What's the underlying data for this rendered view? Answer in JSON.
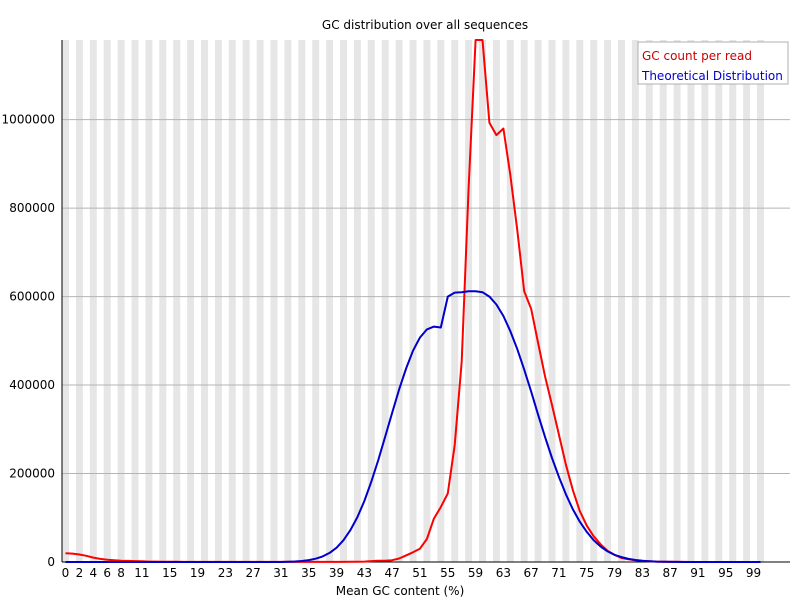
{
  "chart_data": {
    "type": "line",
    "title": "GC distribution over all sequences",
    "xlabel": "Mean GC content (%)",
    "ylabel": "",
    "xlim": [
      0,
      100
    ],
    "ylim": [
      0,
      1180000
    ],
    "x_ticks": [
      "0",
      "2",
      "4",
      "6",
      "8",
      "11",
      "15",
      "19",
      "23",
      "27",
      "31",
      "35",
      "39",
      "43",
      "47",
      "51",
      "55",
      "59",
      "63",
      "67",
      "71",
      "75",
      "79",
      "83",
      "87",
      "91",
      "95",
      "99"
    ],
    "y_ticks": [
      "0",
      "200000",
      "400000",
      "600000",
      "800000",
      "1000000"
    ],
    "grid": "horizontal lines with alternating vertical bands",
    "legend_position": "top-right",
    "x": [
      0,
      1,
      2,
      3,
      4,
      5,
      6,
      7,
      8,
      9,
      10,
      11,
      12,
      13,
      14,
      15,
      16,
      17,
      18,
      19,
      20,
      21,
      22,
      23,
      24,
      25,
      26,
      27,
      28,
      29,
      30,
      31,
      32,
      33,
      34,
      35,
      36,
      37,
      38,
      39,
      40,
      41,
      42,
      43,
      44,
      45,
      46,
      47,
      48,
      49,
      50,
      51,
      52,
      53,
      54,
      55,
      56,
      57,
      58,
      59,
      60,
      61,
      62,
      63,
      64,
      65,
      66,
      67,
      68,
      69,
      70,
      71,
      72,
      73,
      74,
      75,
      76,
      77,
      78,
      79,
      80,
      81,
      82,
      83,
      84,
      85,
      86,
      87,
      88,
      89,
      90,
      91,
      92,
      93,
      94,
      95,
      96,
      97,
      98,
      99,
      100
    ],
    "series": [
      {
        "name": "GC count per read",
        "color": "#ff0000",
        "values": [
          20000,
          19000,
          17000,
          14000,
          10000,
          7000,
          5000,
          4000,
          3000,
          2500,
          2000,
          1500,
          1000,
          800,
          600,
          500,
          400,
          300,
          300,
          300,
          300,
          300,
          300,
          300,
          300,
          300,
          300,
          300,
          300,
          300,
          300,
          300,
          300,
          300,
          300,
          300,
          300,
          300,
          300,
          300,
          300,
          400,
          500,
          1000,
          2000,
          3000,
          3000,
          4000,
          8000,
          15000,
          22000,
          30000,
          52000,
          98000,
          124000,
          155000,
          264000,
          453000,
          845000,
          1180000,
          1180000,
          993000,
          965000,
          980000,
          875000,
          750000,
          612000,
          572000,
          495000,
          420000,
          355000,
          287000,
          220000,
          162000,
          115000,
          82000,
          58000,
          40000,
          25000,
          16000,
          9000,
          6000,
          4000,
          2500,
          1500,
          1000,
          700,
          500,
          300,
          200,
          100,
          100,
          100,
          100,
          100,
          100,
          100,
          100,
          100,
          100,
          100
        ]
      },
      {
        "name": "Theoretical Distribution",
        "color": "#0000cc",
        "values": [
          0,
          0,
          0,
          0,
          0,
          0,
          0,
          0,
          0,
          0,
          0,
          0,
          0,
          0,
          0,
          0,
          0,
          0,
          0,
          0,
          0,
          0,
          0,
          0,
          0,
          0,
          0,
          0,
          0,
          0,
          0,
          0,
          600,
          1200,
          2300,
          4200,
          7400,
          12600,
          20600,
          32400,
          49300,
          72100,
          101600,
          138200,
          181600,
          230600,
          283500,
          337600,
          389900,
          437500,
          477600,
          507300,
          525800,
          532100,
          530000,
          600000,
          609000,
          610000,
          612000,
          612000,
          610000,
          600000,
          582000,
          556000,
          522000,
          481000,
          435000,
          385000,
          333000,
          283000,
          235000,
          192000,
          153000,
          119000,
          91000,
          68000,
          49000,
          35000,
          24000,
          16000,
          11000,
          7000,
          4500,
          2800,
          1700,
          1000,
          600,
          300,
          200,
          100,
          0,
          0,
          0,
          0,
          0,
          0,
          0,
          0,
          0,
          0,
          0
        ]
      }
    ]
  }
}
